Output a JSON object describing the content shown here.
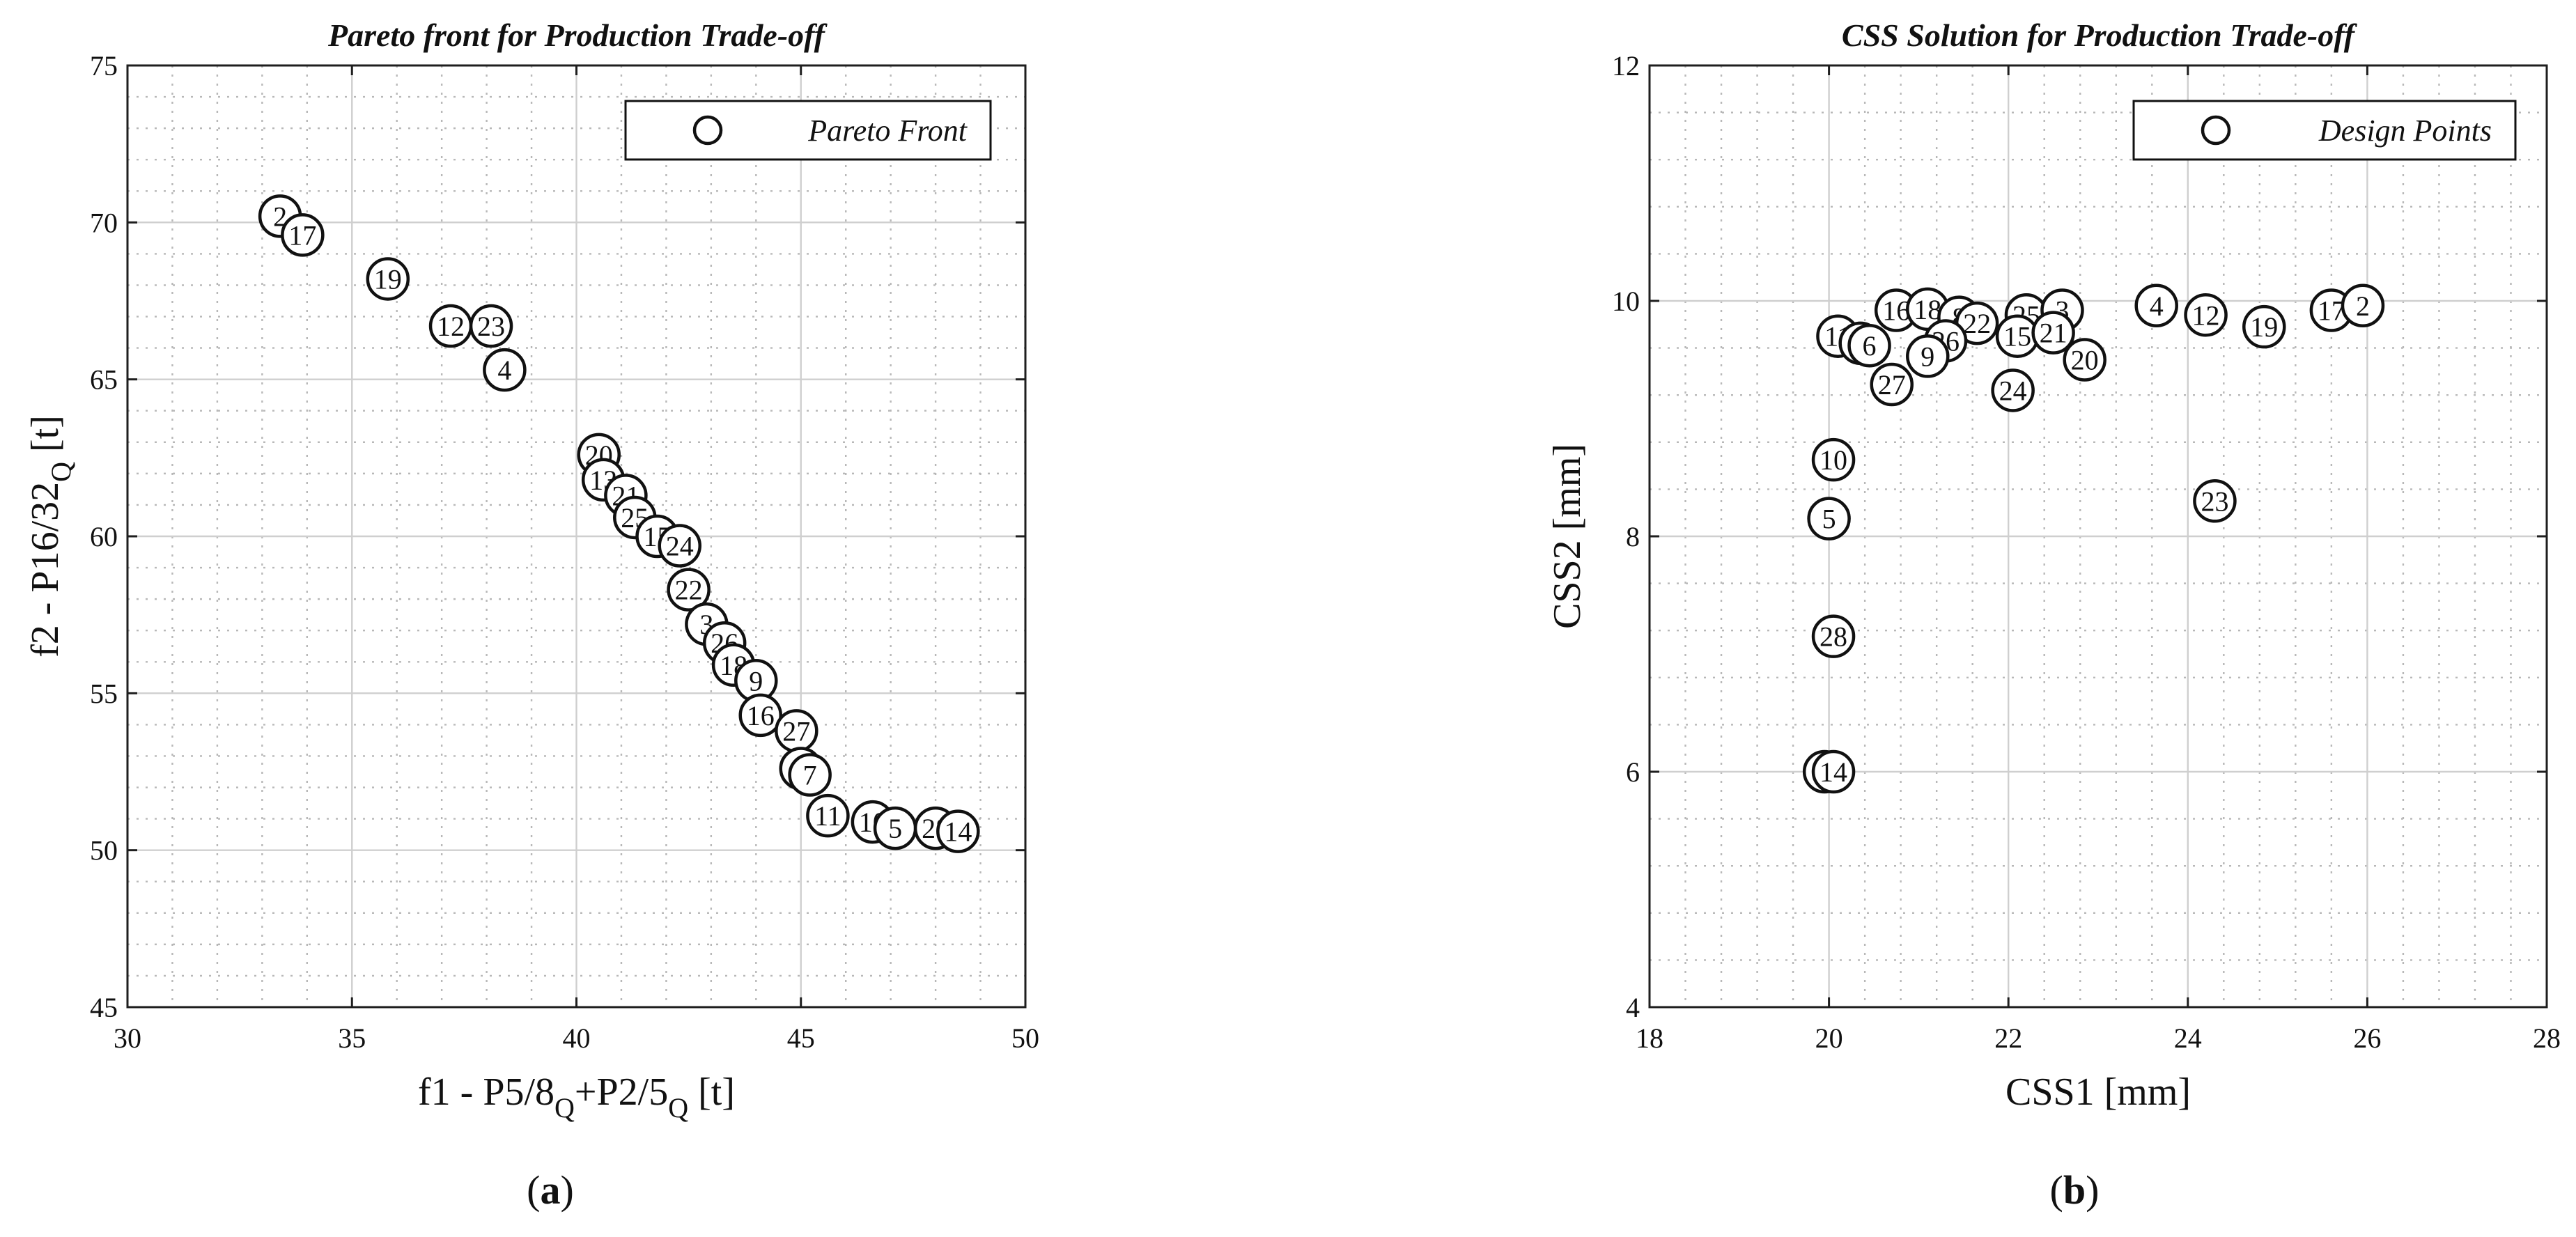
{
  "chart_data": [
    {
      "type": "scatter",
      "title": "Pareto front for Production Trade-off",
      "xlabel_parts": [
        "f1 - P5/8",
        "Q",
        "+P2/5",
        "Q",
        " [t]"
      ],
      "ylabel_parts": [
        "f2 - P16/32",
        "Q",
        " [t]"
      ],
      "xlim": [
        30,
        50
      ],
      "ylim": [
        45,
        75
      ],
      "xticks": [
        30,
        35,
        40,
        45,
        50
      ],
      "yticks": [
        45,
        50,
        55,
        60,
        65,
        70,
        75
      ],
      "grid": true,
      "legend": {
        "label": "Pareto Front",
        "placement": "top-right"
      },
      "caption": {
        "open": "(",
        "letter": "a",
        "close": ")"
      },
      "points": [
        {
          "label": "2",
          "x": 33.4,
          "y": 70.2
        },
        {
          "label": "17",
          "x": 33.9,
          "y": 69.6
        },
        {
          "label": "19",
          "x": 35.8,
          "y": 68.2
        },
        {
          "label": "12",
          "x": 37.2,
          "y": 66.7
        },
        {
          "label": "23",
          "x": 38.1,
          "y": 66.7
        },
        {
          "label": "4",
          "x": 38.4,
          "y": 65.3
        },
        {
          "label": "20",
          "x": 40.5,
          "y": 62.6
        },
        {
          "label": "13",
          "x": 40.6,
          "y": 61.8
        },
        {
          "label": "21",
          "x": 41.1,
          "y": 61.3
        },
        {
          "label": "25",
          "x": 41.3,
          "y": 60.6
        },
        {
          "label": "15",
          "x": 41.8,
          "y": 60.0
        },
        {
          "label": "24",
          "x": 42.3,
          "y": 59.7
        },
        {
          "label": "22",
          "x": 42.5,
          "y": 58.3
        },
        {
          "label": "3",
          "x": 42.9,
          "y": 57.2
        },
        {
          "label": "26",
          "x": 43.3,
          "y": 56.6
        },
        {
          "label": "18",
          "x": 43.5,
          "y": 55.9
        },
        {
          "label": "9",
          "x": 44.0,
          "y": 55.4
        },
        {
          "label": "16",
          "x": 44.1,
          "y": 54.3
        },
        {
          "label": "27",
          "x": 44.9,
          "y": 53.8
        },
        {
          "label": "6",
          "x": 45.0,
          "y": 52.6
        },
        {
          "label": "7",
          "x": 45.2,
          "y": 52.4
        },
        {
          "label": "11",
          "x": 45.6,
          "y": 51.1
        },
        {
          "label": "10",
          "x": 46.6,
          "y": 50.9
        },
        {
          "label": "5",
          "x": 47.1,
          "y": 50.7
        },
        {
          "label": "28",
          "x": 48.0,
          "y": 50.7
        },
        {
          "label": "14",
          "x": 48.5,
          "y": 50.6
        }
      ]
    },
    {
      "type": "scatter",
      "title": "CSS Solution for Production Trade-off",
      "xlabel": "CSS1 [mm]",
      "ylabel": "CSS2 [mm]",
      "xlim": [
        18,
        28
      ],
      "ylim": [
        4,
        12
      ],
      "xticks": [
        18,
        20,
        22,
        24,
        26,
        28
      ],
      "yticks": [
        4,
        6,
        8,
        10,
        12
      ],
      "grid": true,
      "legend": {
        "label": "Design Points",
        "placement": "top-right"
      },
      "caption": {
        "open": "(",
        "letter": "b",
        "close": ")"
      },
      "points": [
        {
          "label": "16",
          "x": 20.75,
          "y": 9.92
        },
        {
          "label": "18",
          "x": 21.1,
          "y": 9.93
        },
        {
          "label": "8",
          "x": 21.45,
          "y": 9.86
        },
        {
          "label": "22",
          "x": 21.65,
          "y": 9.81
        },
        {
          "label": "25",
          "x": 22.2,
          "y": 9.88
        },
        {
          "label": "3",
          "x": 22.6,
          "y": 9.92
        },
        {
          "label": "15",
          "x": 22.1,
          "y": 9.7
        },
        {
          "label": "21",
          "x": 22.5,
          "y": 9.73
        },
        {
          "label": "26",
          "x": 21.3,
          "y": 9.66
        },
        {
          "label": "11",
          "x": 20.1,
          "y": 9.7
        },
        {
          "label": "7",
          "x": 20.35,
          "y": 9.64
        },
        {
          "label": "6",
          "x": 20.45,
          "y": 9.62
        },
        {
          "label": "9",
          "x": 21.1,
          "y": 9.53
        },
        {
          "label": "27",
          "x": 20.7,
          "y": 9.29
        },
        {
          "label": "20",
          "x": 22.85,
          "y": 9.5
        },
        {
          "label": "24",
          "x": 22.05,
          "y": 9.24
        },
        {
          "label": "4",
          "x": 23.65,
          "y": 9.96
        },
        {
          "label": "12",
          "x": 24.2,
          "y": 9.88
        },
        {
          "label": "19",
          "x": 24.85,
          "y": 9.78
        },
        {
          "label": "17",
          "x": 25.6,
          "y": 9.92
        },
        {
          "label": "2",
          "x": 25.95,
          "y": 9.96
        },
        {
          "label": "10",
          "x": 20.05,
          "y": 8.65
        },
        {
          "label": "23",
          "x": 24.3,
          "y": 8.3
        },
        {
          "label": "5",
          "x": 20.0,
          "y": 8.15
        },
        {
          "label": "28",
          "x": 20.05,
          "y": 7.15
        },
        {
          "label": "1",
          "x": 19.95,
          "y": 6.0
        },
        {
          "label": "14",
          "x": 20.05,
          "y": 6.0
        }
      ]
    }
  ]
}
